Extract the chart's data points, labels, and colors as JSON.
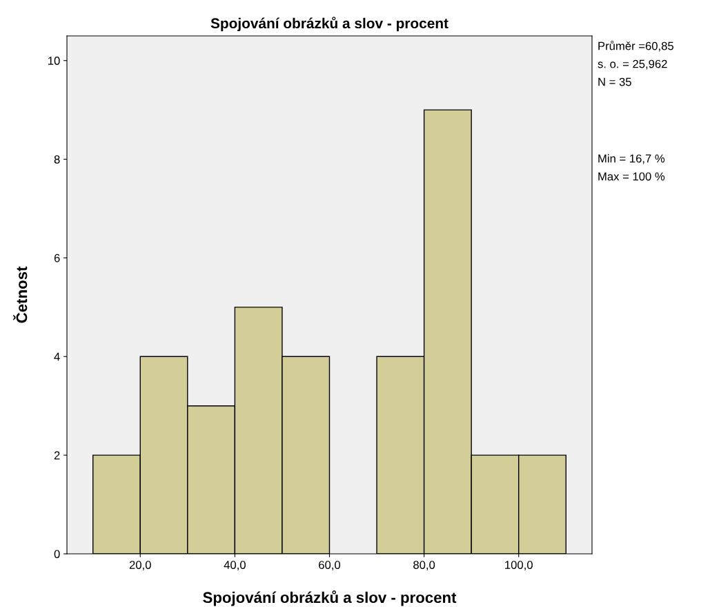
{
  "chart_data": {
    "type": "histogram",
    "title": "Spojování obrázků a slov - procent",
    "xlabel": "Spojování obrázků a slov - procent",
    "ylabel": "Četnost",
    "bins": [
      10,
      20,
      30,
      40,
      50,
      60,
      70,
      80,
      90,
      100,
      110
    ],
    "values": [
      2,
      4,
      3,
      5,
      4,
      0,
      4,
      9,
      2,
      2
    ],
    "color": "#d3ce97",
    "xlim": [
      4.5,
      115.5
    ],
    "xticks": [
      {
        "value": 20,
        "label": "20,0"
      },
      {
        "value": 40,
        "label": "40,0"
      },
      {
        "value": 60,
        "label": "60,0"
      },
      {
        "value": 80,
        "label": "80,0"
      },
      {
        "value": 100,
        "label": "100,0"
      }
    ],
    "ylim": [
      0,
      10.5
    ],
    "yticks": [
      0,
      2,
      4,
      6,
      8,
      10
    ],
    "grid": false,
    "annotations": [
      "Průměr =60,85",
      "s. o. = 25,962",
      "N = 35",
      "Min = 16,7 %",
      "Max = 100 %"
    ]
  }
}
